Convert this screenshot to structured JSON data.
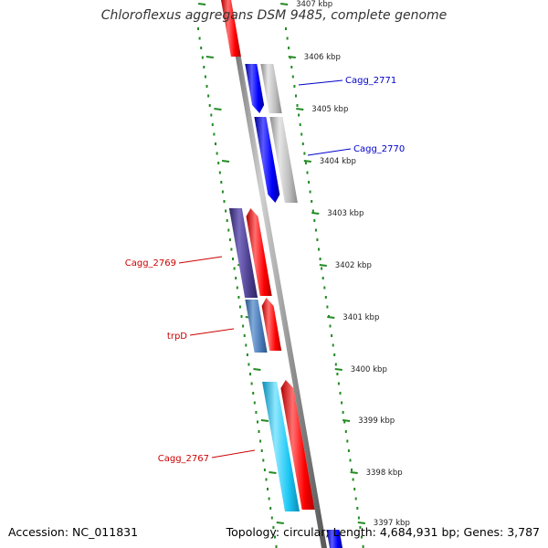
{
  "title": "Chloroflexus aggregans DSM 9485, complete genome",
  "accession_text": "Accession: NC_011831",
  "summary_text": "Topology: circular; Length: 4,684,931 bp; Genes: 3,787",
  "colors": {
    "backbone": "#808080",
    "ticks": "#228b22",
    "forward_gene": "#ff0000",
    "reverse_gene": "#0000ff",
    "label_red": "#cc0000",
    "label_blue": "#0000cc"
  },
  "ticks": [
    {
      "label": "3407 kbp"
    },
    {
      "label": "3406 kbp"
    },
    {
      "label": "3405 kbp"
    },
    {
      "label": "3404 kbp"
    },
    {
      "label": "3403 kbp"
    },
    {
      "label": "3402 kbp"
    },
    {
      "label": "3401 kbp"
    },
    {
      "label": "3400 kbp"
    },
    {
      "label": "3399 kbp"
    },
    {
      "label": "3398 kbp"
    },
    {
      "label": "3397 kbp"
    }
  ],
  "genes": [
    {
      "label": "Cagg_2771",
      "label_side": "right"
    },
    {
      "label": "Cagg_2770",
      "label_side": "right"
    },
    {
      "label": "Cagg_2769",
      "label_side": "left"
    },
    {
      "label": "trpD",
      "label_side": "left"
    },
    {
      "label": "Cagg_2767",
      "label_side": "left"
    }
  ]
}
